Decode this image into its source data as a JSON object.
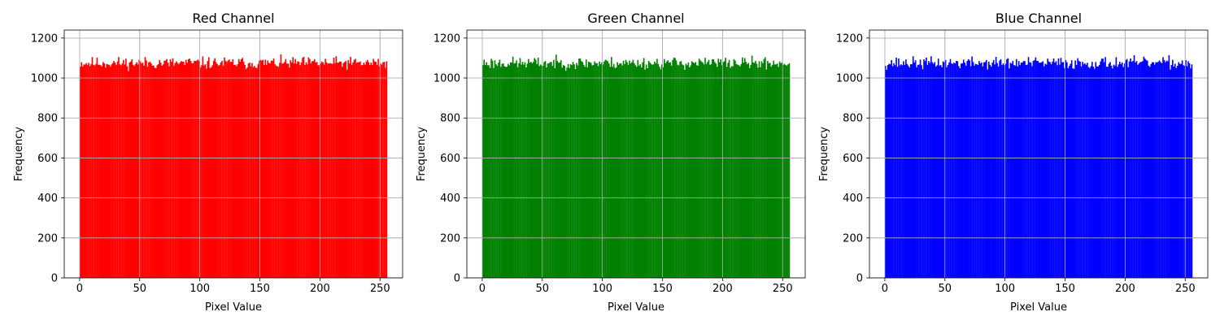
{
  "chart_data": [
    {
      "type": "bar",
      "title": "Red Channel",
      "xlabel": "Pixel Value",
      "ylabel": "Frequency",
      "color": "#ff0000",
      "xlim": [
        -12.8,
        268.8
      ],
      "ylim": [
        0,
        1240
      ],
      "xticks": [
        0,
        50,
        100,
        150,
        200,
        250
      ],
      "yticks": [
        0,
        200,
        400,
        600,
        800,
        1000,
        1200
      ],
      "grid": true,
      "bin_range": [
        0,
        256
      ],
      "bins": 256,
      "values_base": 1075,
      "values_jitter": 45,
      "seed": 11
    },
    {
      "type": "bar",
      "title": "Green Channel",
      "xlabel": "Pixel Value",
      "ylabel": "Frequency",
      "color": "#008000",
      "xlim": [
        -12.8,
        268.8
      ],
      "ylim": [
        0,
        1240
      ],
      "xticks": [
        0,
        50,
        100,
        150,
        200,
        250
      ],
      "yticks": [
        0,
        200,
        400,
        600,
        800,
        1000,
        1200
      ],
      "grid": true,
      "bin_range": [
        0,
        256
      ],
      "bins": 256,
      "values_base": 1075,
      "values_jitter": 45,
      "seed": 23
    },
    {
      "type": "bar",
      "title": "Blue Channel",
      "xlabel": "Pixel Value",
      "ylabel": "Frequency",
      "color": "#0000ff",
      "xlim": [
        -12.8,
        268.8
      ],
      "ylim": [
        0,
        1240
      ],
      "xticks": [
        0,
        50,
        100,
        150,
        200,
        250
      ],
      "yticks": [
        0,
        200,
        400,
        600,
        800,
        1000,
        1200
      ],
      "grid": true,
      "bin_range": [
        0,
        256
      ],
      "bins": 256,
      "values_base": 1075,
      "values_jitter": 45,
      "seed": 37
    }
  ]
}
